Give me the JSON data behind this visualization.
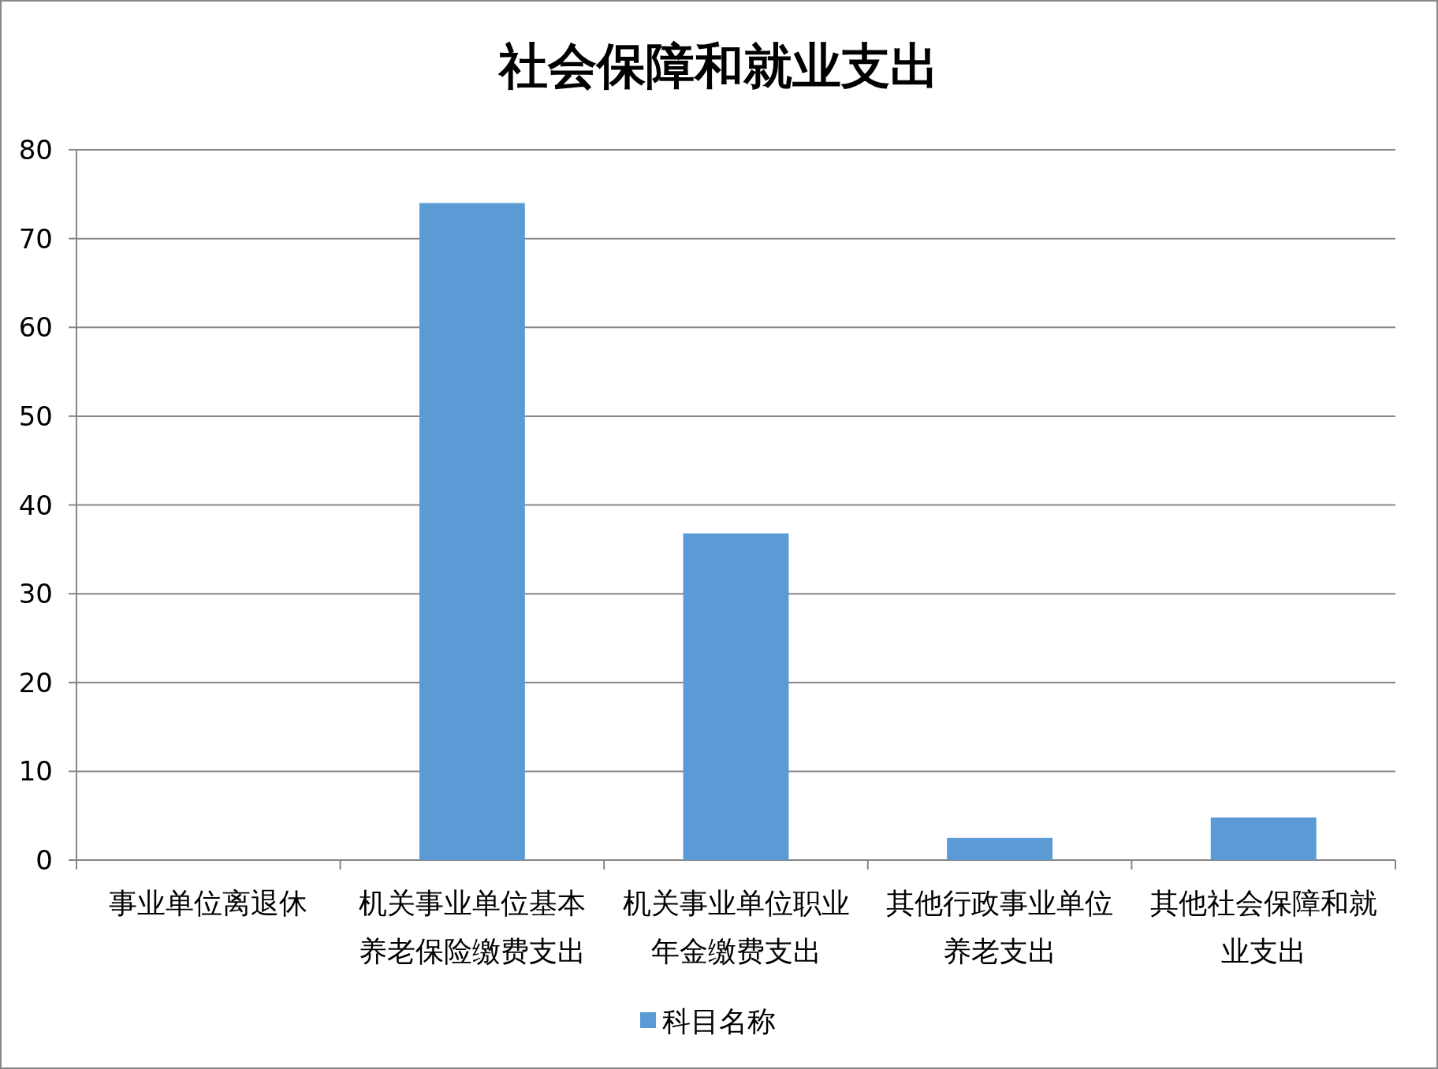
{
  "chart_data": {
    "type": "bar",
    "title": "社会保障和就业支出",
    "categories": [
      "事业单位离退休",
      "机关事业单位基本养老保险缴费支出",
      "机关事业单位职业年金缴费支出",
      "其他行政事业单位养老支出",
      "其他社会保障和就业支出"
    ],
    "series": [
      {
        "name": "科目名称",
        "color": "#5b9bd5",
        "values": [
          0,
          74,
          36.8,
          2.5,
          4.8
        ]
      }
    ],
    "ylim": [
      0,
      80
    ],
    "yticks": [
      0,
      10,
      20,
      30,
      40,
      50,
      60,
      70,
      80
    ],
    "grid": "y",
    "legend": "bottom"
  }
}
